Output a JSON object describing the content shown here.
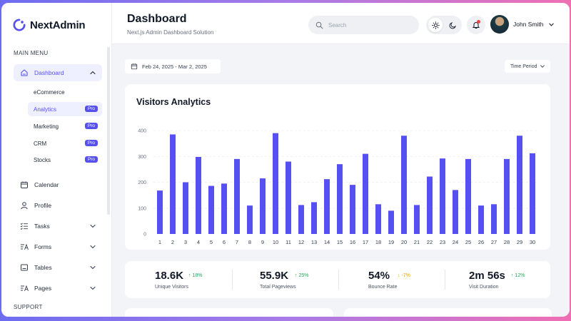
{
  "app": {
    "name": "NextAdmin",
    "accent": "#5750F1"
  },
  "sidebar": {
    "section_main": "MAIN MENU",
    "section_support": "SUPPORT",
    "dashboard": {
      "label": "Dashboard",
      "icon": "home-icon"
    },
    "sub_items": [
      {
        "label": "eCommerce",
        "badge": ""
      },
      {
        "label": "Analytics",
        "badge": "Pro"
      },
      {
        "label": "Marketing",
        "badge": "Pro"
      },
      {
        "label": "CRM",
        "badge": "Pro"
      },
      {
        "label": "Stocks",
        "badge": "Pro"
      }
    ],
    "items": [
      {
        "label": "Calendar",
        "icon": "calendar-icon"
      },
      {
        "label": "Profile",
        "icon": "user-icon"
      },
      {
        "label": "Tasks",
        "icon": "tasks-icon"
      },
      {
        "label": "Forms",
        "icon": "forms-icon"
      },
      {
        "label": "Tables",
        "icon": "table-icon"
      },
      {
        "label": "Pages",
        "icon": "pages-icon"
      }
    ]
  },
  "header": {
    "title": "Dashboard",
    "subtitle": "Next.js Admin Dashboard Solution",
    "search_placeholder": "Search",
    "user_name": "John Smith"
  },
  "filters": {
    "date_range": "Feb 24, 2025 - Mar 2, 2025",
    "period": "Time Period"
  },
  "chart_data": {
    "type": "bar",
    "title": "Visitors Analytics",
    "categories": [
      "1",
      "2",
      "3",
      "4",
      "5",
      "6",
      "7",
      "8",
      "9",
      "10",
      "11",
      "12",
      "13",
      "14",
      "15",
      "16",
      "17",
      "18",
      "19",
      "20",
      "21",
      "22",
      "23",
      "24",
      "25",
      "26",
      "27",
      "28",
      "29",
      "30"
    ],
    "values": [
      168,
      385,
      200,
      298,
      186,
      195,
      290,
      110,
      215,
      390,
      280,
      112,
      123,
      212,
      270,
      190,
      310,
      115,
      90,
      380,
      112,
      222,
      292,
      170,
      290,
      110,
      115,
      290,
      380,
      312
    ],
    "ylim": [
      0,
      400
    ],
    "yticks": [
      "0",
      "100",
      "200",
      "300",
      "400"
    ],
    "color": "#5750F1",
    "grid": true
  },
  "stats": [
    {
      "value": "18.6K",
      "change": "18%",
      "direction": "up",
      "label": "Unique Visitors"
    },
    {
      "value": "55.9K",
      "change": "25%",
      "direction": "up",
      "label": "Total Pageviews"
    },
    {
      "value": "54%",
      "change": "-7%",
      "direction": "down",
      "label": "Bounce Rate"
    },
    {
      "value": "2m 56s",
      "change": "12%",
      "direction": "up",
      "label": "Visit Duration"
    }
  ]
}
